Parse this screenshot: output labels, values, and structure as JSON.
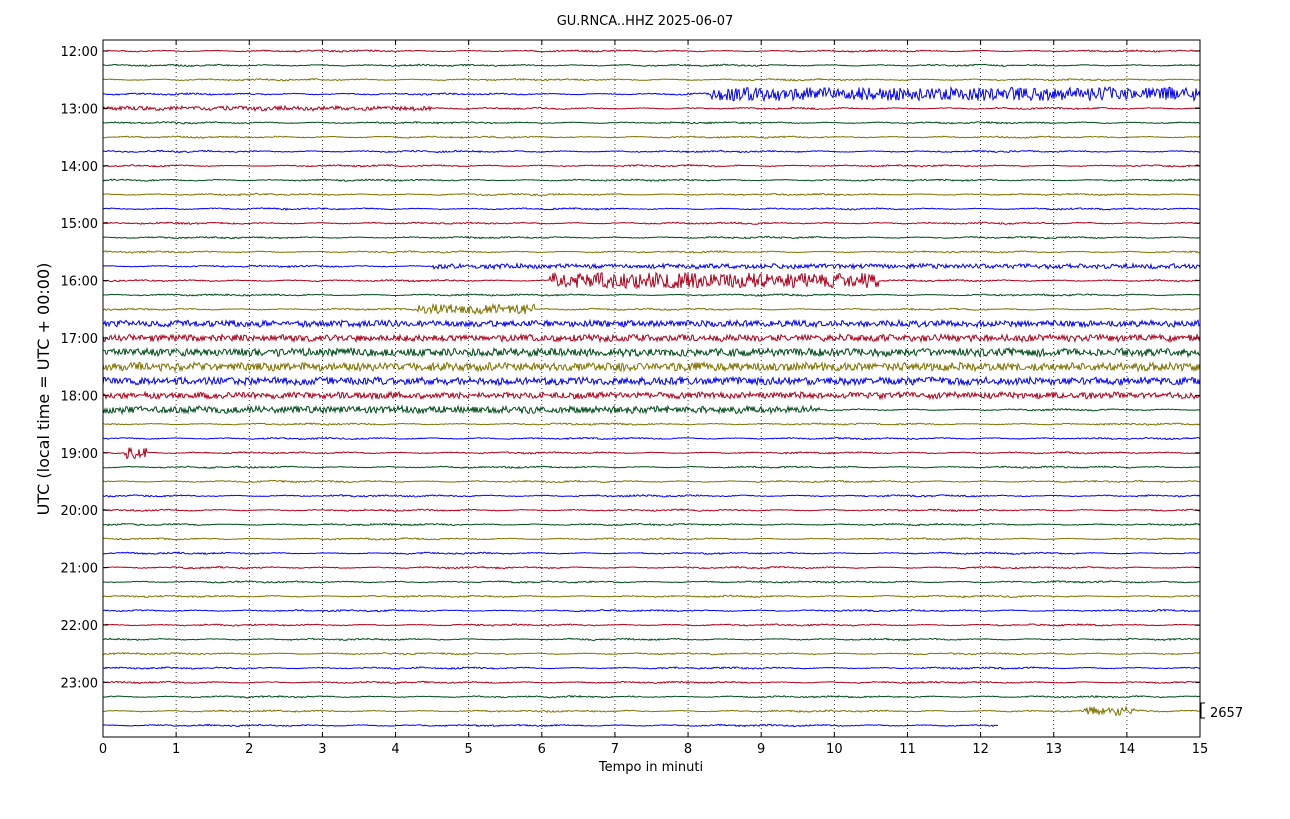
{
  "chart_data": {
    "type": "line",
    "title": "GU.RNCA..HHZ 2025-06-07",
    "xlabel": "Tempo in minuti",
    "ylabel": "UTC (local time = UTC + 00:00)",
    "xlim": [
      0,
      15
    ],
    "x_ticks": [
      "0",
      "1",
      "2",
      "3",
      "4",
      "5",
      "6",
      "7",
      "8",
      "9",
      "10",
      "11",
      "12",
      "13",
      "14",
      "15"
    ],
    "y_tick_labels": [
      "12:00",
      "13:00",
      "14:00",
      "15:00",
      "16:00",
      "17:00",
      "18:00",
      "19:00",
      "20:00",
      "21:00",
      "22:00",
      "23:00"
    ],
    "trace_start": "12:00",
    "trace_interval_minutes": 15,
    "trace_count": 48,
    "color_cycle": [
      "#0000ff",
      "#b0001a",
      "#004d19",
      "#7f7300"
    ],
    "color_cycle_start": "#b0001a",
    "grid": "x-dotted",
    "scale_label": "2657",
    "last_trace_end_minute": 12.25,
    "activity": [
      {
        "trace": "12:45",
        "from": 8.3,
        "to": 15,
        "level": 6.5
      },
      {
        "trace": "13:00",
        "from": 0,
        "to": 4.5,
        "level": 2.0
      },
      {
        "trace": "15:45",
        "from": 4.5,
        "to": 15,
        "level": 2.2
      },
      {
        "trace": "16:00",
        "from": 6.1,
        "to": 10.6,
        "level": 7.5
      },
      {
        "trace": "16:30",
        "from": 4.3,
        "to": 5.9,
        "level": 5.0
      },
      {
        "trace": "16:45",
        "from": 0,
        "to": 15,
        "level": 3.0
      },
      {
        "trace": "17:00",
        "from": 0,
        "to": 15,
        "level": 3.2
      },
      {
        "trace": "17:15",
        "from": 0,
        "to": 15,
        "level": 3.8
      },
      {
        "trace": "17:30",
        "from": 0,
        "to": 15,
        "level": 4.0
      },
      {
        "trace": "17:45",
        "from": 0,
        "to": 15,
        "level": 3.6
      },
      {
        "trace": "18:00",
        "from": 0,
        "to": 15,
        "level": 3.0
      },
      {
        "trace": "18:15",
        "from": 0,
        "to": 9.8,
        "level": 3.4
      },
      {
        "trace": "19:00",
        "from": 0.3,
        "to": 0.6,
        "level": 6.0
      },
      {
        "trace": "23:30",
        "from": 13.4,
        "to": 14.1,
        "level": 4.0
      }
    ]
  }
}
